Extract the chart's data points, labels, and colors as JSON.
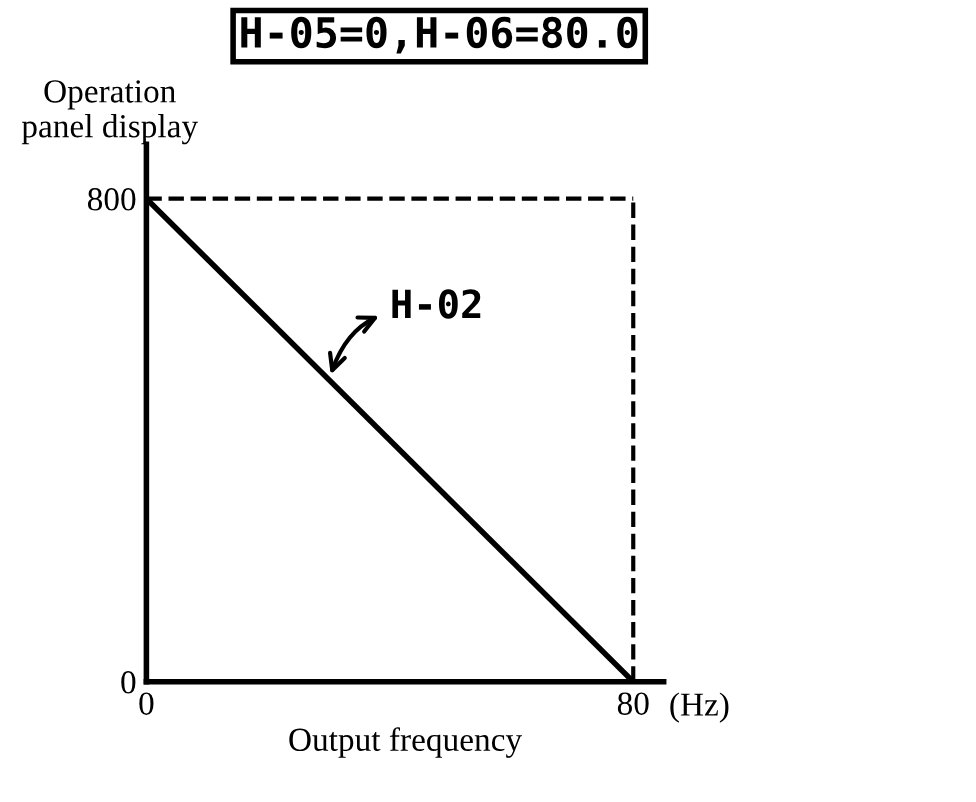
{
  "chart_data": {
    "type": "line",
    "title": "H-05=0,H-06=80.0",
    "xlabel": "Output frequency",
    "ylabel": "Operation\npanel display",
    "x": [
      0,
      80
    ],
    "series": [
      {
        "color": "#000000",
        "values": [
          800,
          0
        ]
      }
    ],
    "xlim": [
      0,
      85
    ],
    "ylim": [
      0,
      890
    ],
    "xticks": [
      0,
      80
    ],
    "yticks": [
      0,
      800
    ],
    "ref_lines": [
      {
        "axis": "y",
        "value": 800,
        "color": "#000000",
        "line_style": "dashed"
      },
      {
        "axis": "x",
        "value": 80,
        "color": "#000000",
        "line_style": "dashed"
      }
    ],
    "annotations": [
      {
        "text": "H-02",
        "x": 30,
        "y": 500
      },
      "(Hz)"
    ],
    "grid": false,
    "marker": "none",
    "line_style": "solid"
  }
}
